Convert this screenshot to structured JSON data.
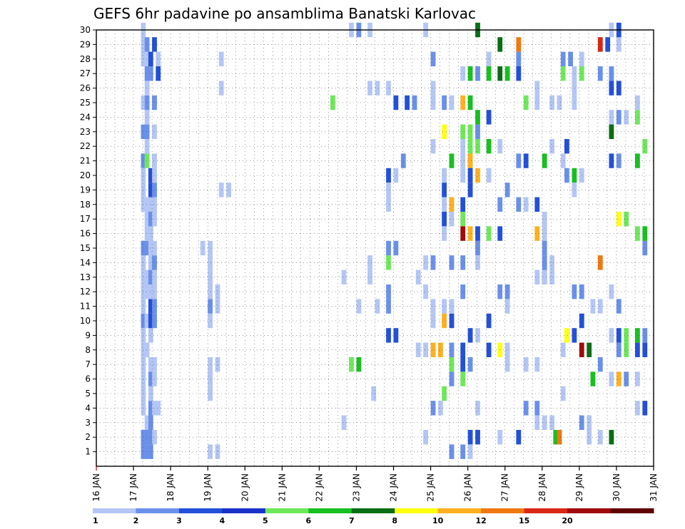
{
  "chart_data": {
    "type": "heatmap",
    "title": "GEFS 6hr padavine po ansamblima Banatski Karlovac",
    "x_ticks": [
      "16 JAN",
      "17 JAN",
      "18 JAN",
      "19 JAN",
      "20 JAN",
      "21 JAN",
      "22 JAN",
      "23 JAN",
      "24 JAN",
      "25 JAN",
      "26 JAN",
      "27 JAN",
      "28 JAN",
      "29 JAN",
      "30 JAN",
      "31 JAN"
    ],
    "x_range_days": [
      16,
      31
    ],
    "y_ticks": [
      "1",
      "2",
      "3",
      "4",
      "5",
      "6",
      "7",
      "8",
      "9",
      "10",
      "11",
      "12",
      "13",
      "14",
      "15",
      "16",
      "17",
      "18",
      "19",
      "20",
      "21",
      "22",
      "23",
      "24",
      "25",
      "26",
      "27",
      "28",
      "29",
      "30"
    ],
    "y_range": [
      0,
      30
    ],
    "grid": true,
    "legend": {
      "position": "bottom",
      "levels": [
        "1",
        "2",
        "3",
        "4",
        "5",
        "6",
        "7",
        "8",
        "10",
        "12",
        "15",
        "20"
      ],
      "colors": [
        "#b4c6f5",
        "#6a90ea",
        "#2350d8",
        "#1a32c8",
        "#6ee85a",
        "#18c020",
        "#0a6e14",
        "#ffff10",
        "#ffb020",
        "#f07810",
        "#d82814",
        "#a00a0a",
        "#600000"
      ]
    },
    "cells": [
      [
        17.2,
        1,
        1
      ],
      [
        17.3,
        1,
        1
      ],
      [
        17.4,
        1,
        1
      ],
      [
        17.2,
        2,
        1
      ],
      [
        17.3,
        2,
        1
      ],
      [
        17.4,
        2,
        1
      ],
      [
        17.5,
        2,
        0
      ],
      [
        17.3,
        3,
        0
      ],
      [
        17.4,
        3,
        1
      ],
      [
        17.2,
        4,
        0
      ],
      [
        17.4,
        4,
        1
      ],
      [
        17.5,
        4,
        0
      ],
      [
        17.6,
        4,
        0
      ],
      [
        17.2,
        5,
        0
      ],
      [
        17.4,
        5,
        0
      ],
      [
        17.2,
        6,
        0
      ],
      [
        17.4,
        6,
        1
      ],
      [
        17.5,
        6,
        0
      ],
      [
        17.2,
        7,
        0
      ],
      [
        17.4,
        7,
        0
      ],
      [
        17.5,
        7,
        0
      ],
      [
        17.2,
        8,
        0
      ],
      [
        17.3,
        8,
        0
      ],
      [
        17.2,
        9,
        0
      ],
      [
        17.4,
        9,
        0
      ],
      [
        17.2,
        10,
        1
      ],
      [
        17.3,
        10,
        0
      ],
      [
        17.4,
        10,
        2
      ],
      [
        17.5,
        10,
        1
      ],
      [
        17.2,
        11,
        0
      ],
      [
        17.4,
        11,
        2
      ],
      [
        17.5,
        11,
        1
      ],
      [
        17.2,
        12,
        0
      ],
      [
        17.3,
        12,
        0
      ],
      [
        17.4,
        12,
        0
      ],
      [
        17.5,
        12,
        0
      ],
      [
        17.2,
        13,
        0
      ],
      [
        17.3,
        13,
        0
      ],
      [
        17.4,
        13,
        1
      ],
      [
        17.5,
        13,
        0
      ],
      [
        17.2,
        14,
        0
      ],
      [
        17.4,
        14,
        0
      ],
      [
        17.5,
        14,
        1
      ],
      [
        17.2,
        15,
        1
      ],
      [
        17.3,
        15,
        1
      ],
      [
        17.4,
        15,
        0
      ],
      [
        17.5,
        15,
        0
      ],
      [
        17.3,
        16,
        0
      ],
      [
        17.4,
        16,
        0
      ],
      [
        17.3,
        17,
        0
      ],
      [
        17.4,
        17,
        1
      ],
      [
        17.5,
        17,
        0
      ],
      [
        17.2,
        18,
        0
      ],
      [
        17.3,
        18,
        0
      ],
      [
        17.4,
        18,
        0
      ],
      [
        17.5,
        18,
        0
      ],
      [
        17.2,
        19,
        0
      ],
      [
        17.4,
        19,
        2
      ],
      [
        17.5,
        19,
        1
      ],
      [
        17.2,
        20,
        0
      ],
      [
        17.4,
        20,
        2
      ],
      [
        17.5,
        20,
        0
      ],
      [
        17.2,
        21,
        1
      ],
      [
        17.3,
        21,
        4
      ],
      [
        17.5,
        21,
        0
      ],
      [
        17.3,
        22,
        0
      ],
      [
        17.2,
        23,
        1
      ],
      [
        17.3,
        23,
        1
      ],
      [
        17.5,
        23,
        0
      ],
      [
        17.3,
        24,
        0
      ],
      [
        17.2,
        25,
        0
      ],
      [
        17.3,
        25,
        1
      ],
      [
        17.5,
        25,
        1
      ],
      [
        17.3,
        26,
        0
      ],
      [
        17.3,
        27,
        1
      ],
      [
        17.4,
        27,
        1
      ],
      [
        17.6,
        27,
        2
      ],
      [
        17.2,
        28,
        0
      ],
      [
        17.3,
        28,
        0
      ],
      [
        17.4,
        28,
        2
      ],
      [
        17.6,
        28,
        0
      ],
      [
        17.2,
        29,
        0
      ],
      [
        17.3,
        29,
        1
      ],
      [
        17.5,
        29,
        2
      ],
      [
        17.2,
        30,
        0
      ],
      [
        19.0,
        1,
        0
      ],
      [
        19.2,
        1,
        0
      ],
      [
        19.0,
        5,
        0
      ],
      [
        19.0,
        6,
        0
      ],
      [
        19.0,
        7,
        0
      ],
      [
        19.2,
        7,
        0
      ],
      [
        19.0,
        10,
        0
      ],
      [
        19.0,
        11,
        1
      ],
      [
        19.2,
        11,
        0
      ],
      [
        19.0,
        12,
        0
      ],
      [
        19.2,
        12,
        0
      ],
      [
        19.0,
        13,
        0
      ],
      [
        19.0,
        14,
        0
      ],
      [
        18.8,
        15,
        0
      ],
      [
        19.0,
        15,
        0
      ],
      [
        19.3,
        19,
        0
      ],
      [
        19.5,
        19,
        0
      ],
      [
        19.3,
        26,
        0
      ],
      [
        19.3,
        28,
        0
      ],
      [
        22.3,
        25,
        4
      ],
      [
        22.6,
        3,
        0
      ],
      [
        22.6,
        13,
        0
      ],
      [
        22.8,
        7,
        4
      ],
      [
        23.0,
        7,
        5
      ],
      [
        23.0,
        11,
        0
      ],
      [
        23.3,
        13,
        0
      ],
      [
        23.3,
        14,
        0
      ],
      [
        23.4,
        5,
        0
      ],
      [
        22.8,
        30,
        0
      ],
      [
        23.0,
        30,
        1
      ],
      [
        23.3,
        30,
        0
      ],
      [
        23.3,
        26,
        0
      ],
      [
        23.5,
        26,
        0
      ],
      [
        23.8,
        26,
        0
      ],
      [
        23.5,
        11,
        0
      ],
      [
        23.8,
        11,
        1
      ],
      [
        23.8,
        12,
        1
      ],
      [
        23.8,
        14,
        4
      ],
      [
        23.8,
        15,
        1
      ],
      [
        24.0,
        15,
        1
      ],
      [
        23.8,
        20,
        2
      ],
      [
        24.0,
        20,
        0
      ],
      [
        23.8,
        18,
        0
      ],
      [
        23.8,
        19,
        0
      ],
      [
        23.8,
        9,
        2
      ],
      [
        24.0,
        9,
        2
      ],
      [
        24.2,
        21,
        1
      ],
      [
        24.0,
        25,
        2
      ],
      [
        24.3,
        25,
        2
      ],
      [
        24.5,
        25,
        1
      ],
      [
        24.6,
        13,
        0
      ],
      [
        24.6,
        8,
        0
      ],
      [
        24.8,
        8,
        0
      ],
      [
        24.8,
        12,
        0
      ],
      [
        24.8,
        2,
        0
      ],
      [
        24.8,
        14,
        0
      ],
      [
        24.8,
        30,
        0
      ],
      [
        25.0,
        28,
        1
      ],
      [
        25.0,
        26,
        0
      ],
      [
        25.0,
        25,
        0
      ],
      [
        25.0,
        22,
        0
      ],
      [
        25.0,
        14,
        1
      ],
      [
        25.0,
        11,
        0
      ],
      [
        25.0,
        10,
        0
      ],
      [
        25.0,
        8,
        8
      ],
      [
        25.0,
        4,
        1
      ],
      [
        25.2,
        8,
        8
      ],
      [
        25.2,
        4,
        0
      ],
      [
        25.3,
        5,
        4
      ],
      [
        25.3,
        10,
        8
      ],
      [
        25.5,
        10,
        2
      ],
      [
        25.3,
        11,
        0
      ],
      [
        25.5,
        11,
        0
      ],
      [
        25.3,
        25,
        1
      ],
      [
        25.3,
        23,
        7
      ],
      [
        25.3,
        20,
        0
      ],
      [
        25.3,
        19,
        2
      ],
      [
        25.3,
        18,
        0
      ],
      [
        25.3,
        17,
        2
      ],
      [
        25.3,
        16,
        0
      ],
      [
        25.5,
        18,
        8
      ],
      [
        25.5,
        17,
        0
      ],
      [
        25.5,
        14,
        1
      ],
      [
        25.5,
        8,
        1
      ],
      [
        25.5,
        7,
        4
      ],
      [
        25.5,
        6,
        1
      ],
      [
        25.5,
        25,
        0
      ],
      [
        25.5,
        1,
        1
      ],
      [
        25.8,
        1,
        1
      ],
      [
        25.8,
        25,
        8
      ],
      [
        25.8,
        27,
        0
      ],
      [
        25.8,
        23,
        4
      ],
      [
        25.8,
        21,
        0
      ],
      [
        25.8,
        17,
        4
      ],
      [
        25.8,
        18,
        2
      ],
      [
        25.8,
        16,
        11
      ],
      [
        25.8,
        14,
        1
      ],
      [
        25.8,
        12,
        1
      ],
      [
        25.8,
        8,
        2
      ],
      [
        25.8,
        7,
        2
      ],
      [
        25.8,
        6,
        4
      ],
      [
        25.5,
        21,
        5
      ],
      [
        25.8,
        22,
        0
      ],
      [
        26.0,
        21,
        5
      ],
      [
        25.8,
        20,
        0
      ],
      [
        26.0,
        27,
        5
      ],
      [
        26.0,
        25,
        5
      ],
      [
        26.0,
        23,
        4
      ],
      [
        26.0,
        22,
        4
      ],
      [
        26.0,
        21,
        8
      ],
      [
        26.0,
        20,
        2
      ],
      [
        26.0,
        19,
        2
      ],
      [
        26.0,
        16,
        8
      ],
      [
        26.0,
        9,
        2
      ],
      [
        26.0,
        7,
        1
      ],
      [
        26.0,
        2,
        2
      ],
      [
        26.0,
        1,
        0
      ],
      [
        26.2,
        27,
        1
      ],
      [
        26.2,
        24,
        5
      ],
      [
        26.2,
        23,
        1
      ],
      [
        26.2,
        22,
        4
      ],
      [
        26.2,
        20,
        8
      ],
      [
        26.2,
        16,
        2
      ],
      [
        26.2,
        15,
        1
      ],
      [
        26.2,
        14,
        0
      ],
      [
        26.2,
        9,
        0
      ],
      [
        26.2,
        4,
        0
      ],
      [
        26.2,
        2,
        2
      ],
      [
        26.2,
        30,
        6
      ],
      [
        26.5,
        27,
        5
      ],
      [
        26.5,
        24,
        2
      ],
      [
        26.5,
        22,
        5
      ],
      [
        26.5,
        16,
        4
      ],
      [
        26.5,
        10,
        2
      ],
      [
        26.5,
        8,
        2
      ],
      [
        26.5,
        28,
        0
      ],
      [
        26.8,
        27,
        6
      ],
      [
        26.8,
        29,
        6
      ],
      [
        26.8,
        22,
        0
      ],
      [
        26.8,
        18,
        1
      ],
      [
        26.8,
        16,
        2
      ],
      [
        26.8,
        12,
        1
      ],
      [
        26.8,
        8,
        7
      ],
      [
        26.8,
        2,
        0
      ],
      [
        26.5,
        20,
        0
      ],
      [
        27.0,
        27,
        5
      ],
      [
        27.0,
        19,
        1
      ],
      [
        27.0,
        12,
        1
      ],
      [
        27.0,
        11,
        0
      ],
      [
        27.0,
        8,
        0
      ],
      [
        27.0,
        7,
        0
      ],
      [
        27.3,
        29,
        9
      ],
      [
        27.3,
        28,
        1
      ],
      [
        27.3,
        21,
        1
      ],
      [
        27.3,
        18,
        1
      ],
      [
        27.3,
        27,
        2
      ],
      [
        27.3,
        2,
        2
      ],
      [
        27.5,
        25,
        4
      ],
      [
        27.5,
        21,
        2
      ],
      [
        27.5,
        7,
        0
      ],
      [
        27.5,
        4,
        1
      ],
      [
        27.5,
        18,
        0
      ],
      [
        27.8,
        26,
        0
      ],
      [
        27.8,
        25,
        0
      ],
      [
        27.8,
        18,
        2
      ],
      [
        27.8,
        16,
        8
      ],
      [
        27.8,
        13,
        0
      ],
      [
        27.8,
        7,
        0
      ],
      [
        27.8,
        3,
        0
      ],
      [
        27.8,
        4,
        1
      ],
      [
        28.0,
        21,
        5
      ],
      [
        28.0,
        17,
        0
      ],
      [
        28.0,
        16,
        0
      ],
      [
        28.0,
        15,
        1
      ],
      [
        28.0,
        14,
        1
      ],
      [
        28.0,
        13,
        2
      ],
      [
        28.0,
        3,
        0
      ],
      [
        28.0,
        13,
        0
      ],
      [
        28.2,
        13,
        0
      ],
      [
        28.2,
        14,
        0
      ],
      [
        28.2,
        25,
        0
      ],
      [
        28.2,
        22,
        0
      ],
      [
        28.2,
        3,
        0
      ],
      [
        28.3,
        2,
        5
      ],
      [
        28.4,
        2,
        9
      ],
      [
        28.5,
        5,
        0
      ],
      [
        28.5,
        8,
        0
      ],
      [
        28.4,
        25,
        0
      ],
      [
        28.5,
        28,
        1
      ],
      [
        28.5,
        27,
        4
      ],
      [
        28.6,
        22,
        2
      ],
      [
        28.5,
        21,
        0
      ],
      [
        28.6,
        20,
        1
      ],
      [
        28.6,
        9,
        7
      ],
      [
        28.8,
        9,
        2
      ],
      [
        28.8,
        27,
        0
      ],
      [
        28.7,
        28,
        1
      ],
      [
        28.8,
        25,
        0
      ],
      [
        28.8,
        26,
        0
      ],
      [
        28.8,
        20,
        5
      ],
      [
        28.8,
        19,
        0
      ],
      [
        28.8,
        12,
        1
      ],
      [
        29.0,
        12,
        1
      ],
      [
        29.0,
        3,
        1
      ],
      [
        29.0,
        20,
        0
      ],
      [
        29.0,
        27,
        4
      ],
      [
        29.0,
        28,
        0
      ],
      [
        29.0,
        10,
        2
      ],
      [
        29.0,
        8,
        11
      ],
      [
        29.2,
        8,
        6
      ],
      [
        29.2,
        3,
        0
      ],
      [
        29.2,
        2,
        0
      ],
      [
        29.3,
        6,
        5
      ],
      [
        29.3,
        11,
        0
      ],
      [
        29.5,
        7,
        1
      ],
      [
        29.5,
        2,
        0
      ],
      [
        29.5,
        29,
        10
      ],
      [
        29.7,
        29,
        2
      ],
      [
        29.5,
        14,
        9
      ],
      [
        29.8,
        24,
        0
      ],
      [
        29.8,
        23,
        6
      ],
      [
        29.8,
        27,
        1
      ],
      [
        29.8,
        26,
        2
      ],
      [
        29.8,
        21,
        2
      ],
      [
        29.8,
        12,
        0
      ],
      [
        29.8,
        9,
        0
      ],
      [
        29.8,
        6,
        0
      ],
      [
        29.8,
        2,
        6
      ],
      [
        29.8,
        30,
        0
      ],
      [
        29.5,
        27,
        1
      ],
      [
        29.5,
        11,
        0
      ],
      [
        30.0,
        24,
        1
      ],
      [
        30.0,
        21,
        1
      ],
      [
        30.0,
        26,
        2
      ],
      [
        30.0,
        9,
        2
      ],
      [
        30.0,
        8,
        1
      ],
      [
        30.0,
        6,
        8
      ],
      [
        30.0,
        11,
        1
      ],
      [
        30.0,
        17,
        7
      ],
      [
        30.0,
        29,
        0
      ],
      [
        30.0,
        30,
        2
      ],
      [
        30.2,
        24,
        0
      ],
      [
        30.2,
        17,
        4
      ],
      [
        30.2,
        9,
        4
      ],
      [
        30.2,
        8,
        4
      ],
      [
        30.2,
        6,
        1
      ],
      [
        30.5,
        8,
        2
      ],
      [
        30.5,
        9,
        5
      ],
      [
        30.5,
        16,
        4
      ],
      [
        30.5,
        21,
        5
      ],
      [
        30.5,
        24,
        4
      ],
      [
        30.5,
        25,
        0
      ],
      [
        30.5,
        4,
        0
      ],
      [
        30.5,
        6,
        0
      ],
      [
        30.7,
        8,
        2
      ],
      [
        30.7,
        15,
        1
      ],
      [
        30.7,
        4,
        2
      ],
      [
        30.7,
        22,
        4
      ],
      [
        30.7,
        16,
        5
      ],
      [
        30.7,
        9,
        1
      ]
    ]
  }
}
